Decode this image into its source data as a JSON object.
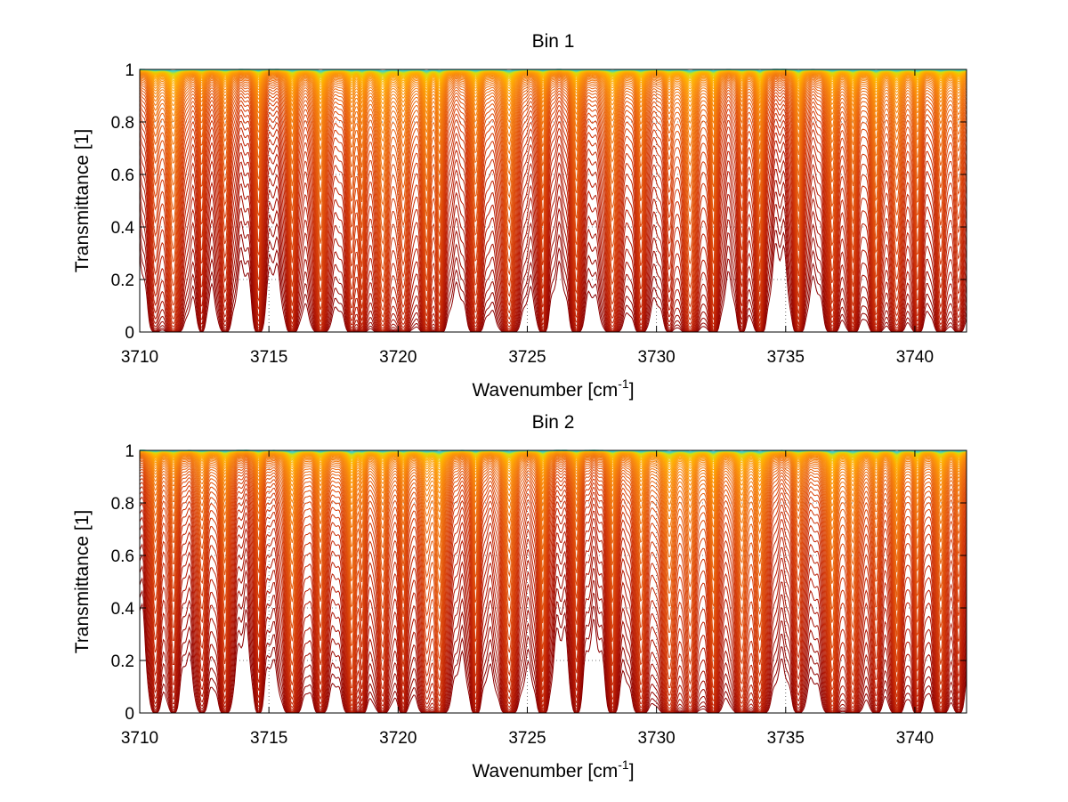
{
  "chart_data": [
    {
      "type": "line",
      "title": "Bin 1",
      "xlabel": "Wavenumber [cm",
      "xlabel_sup": "-1",
      "xlabel_close": "]",
      "ylabel": "Transmittance [1]",
      "xlim": [
        3710,
        3742
      ],
      "ylim": [
        0,
        1
      ],
      "grid": "dotted",
      "legend": "none",
      "xticks": [
        3710,
        3715,
        3720,
        3725,
        3730,
        3735,
        3740
      ],
      "yticks": [
        0,
        0.2,
        0.4,
        0.6,
        0.8,
        1
      ],
      "colormap": [
        "#8b0000",
        "#b81c06",
        "#d8400a",
        "#ec6a10",
        "#f98c0c",
        "#ffb000",
        "#d7e00a",
        "#42d4c8"
      ],
      "approx_series_count": 60,
      "absorption_line_centers": [
        3710.6,
        3711.3,
        3712.4,
        3713.3,
        3714.6,
        3715.9,
        3717.0,
        3718.2,
        3718.6,
        3719.4,
        3720.2,
        3721.1,
        3721.6,
        3723.0,
        3724.3,
        3725.6,
        3726.9,
        3728.3,
        3729.4,
        3730.5,
        3731.3,
        3732.2,
        3733.3,
        3734.0,
        3735.5,
        3736.8,
        3737.6,
        3738.5,
        3739.3,
        3740.1,
        3741.0,
        3741.7
      ]
    },
    {
      "type": "line",
      "title": "Bin 2",
      "xlabel": "Wavenumber [cm",
      "xlabel_sup": "-1",
      "xlabel_close": "]",
      "ylabel": "Transmittance [1]",
      "xlim": [
        3710,
        3742
      ],
      "ylim": [
        0,
        1
      ],
      "grid": "dotted",
      "legend": "none",
      "xticks": [
        3710,
        3715,
        3720,
        3725,
        3730,
        3735,
        3740
      ],
      "yticks": [
        0,
        0.2,
        0.4,
        0.6,
        0.8,
        1
      ],
      "colormap": [
        "#8b0000",
        "#b81c06",
        "#d8400a",
        "#ec6a10",
        "#f98c0c",
        "#ffb000",
        "#d7e00a",
        "#42d4c8"
      ],
      "approx_series_count": 60,
      "absorption_line_centers": [
        3710.6,
        3711.3,
        3712.4,
        3713.3,
        3714.6,
        3715.9,
        3717.0,
        3718.2,
        3718.6,
        3719.4,
        3720.2,
        3721.1,
        3721.6,
        3723.0,
        3724.3,
        3725.6,
        3726.9,
        3728.3,
        3729.4,
        3730.5,
        3731.3,
        3732.2,
        3733.3,
        3734.0,
        3735.5,
        3736.8,
        3737.6,
        3738.5,
        3739.3,
        3740.1,
        3741.0,
        3741.7
      ]
    }
  ]
}
